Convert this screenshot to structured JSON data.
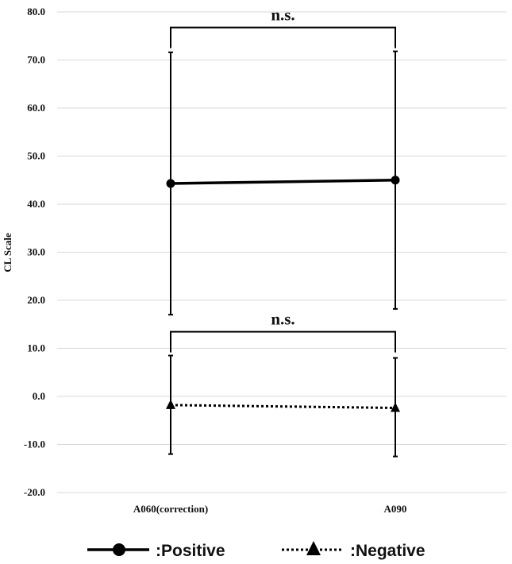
{
  "chart_data": {
    "type": "line",
    "ylabel": "CL Scale",
    "ylim": [
      -20,
      80
    ],
    "yticks": [
      -20,
      -10,
      0,
      10,
      20,
      30,
      40,
      50,
      60,
      70,
      80
    ],
    "ytick_labels": [
      "-20.0",
      "-10.0",
      "0.0",
      "10.0",
      "20.0",
      "30.0",
      "40.0",
      "50.0",
      "60.0",
      "70.0",
      "80.0"
    ],
    "grid": true,
    "categories": [
      "A060(correction)",
      "A090"
    ],
    "series": [
      {
        "name": ":Positive",
        "marker": "circle",
        "line": "solid",
        "color": "#000000",
        "values": [
          44.3,
          45.0
        ],
        "error_low": [
          17.0,
          18.2
        ],
        "error_high": [
          71.6,
          71.8
        ]
      },
      {
        "name": ":Negative",
        "marker": "triangle",
        "line": "dotted",
        "color": "#000000",
        "values": [
          -1.8,
          -2.4
        ],
        "error_low": [
          -12.0,
          -12.5
        ],
        "error_high": [
          8.5,
          8.0
        ]
      }
    ],
    "annotations": [
      {
        "text": "n.s.",
        "series_index": 0
      },
      {
        "text": "n.s.",
        "series_index": 1
      }
    ],
    "legend_position": "bottom"
  }
}
